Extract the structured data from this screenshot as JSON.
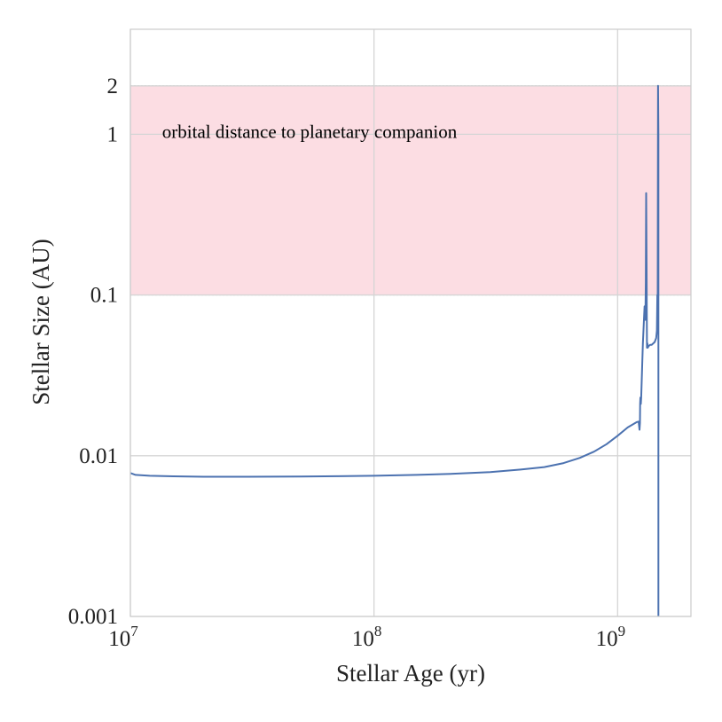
{
  "chart_data": {
    "type": "line",
    "xlabel": "Stellar Age (yr)",
    "ylabel": "Stellar Size (AU)",
    "xscale": "log",
    "yscale": "log",
    "xlim": [
      10000000,
      2000000000
    ],
    "ylim": [
      0.001,
      4.5
    ],
    "grid": true,
    "x_ticks": [
      {
        "value": 10000000,
        "base": "10",
        "exp": "7"
      },
      {
        "value": 100000000,
        "base": "10",
        "exp": "8"
      },
      {
        "value": 1000000000,
        "base": "10",
        "exp": "9"
      }
    ],
    "y_ticks": [
      {
        "value": 0.001,
        "label": "0.001"
      },
      {
        "value": 0.01,
        "label": "0.01"
      },
      {
        "value": 0.1,
        "label": "0.1"
      },
      {
        "value": 1,
        "label": "1"
      },
      {
        "value": 2,
        "label": "2"
      }
    ],
    "band": {
      "y_min": 0.1,
      "y_max": 2,
      "color": "#fcdde3",
      "edge_color": "#bbbbbb"
    },
    "annotation": {
      "text": "orbital distance to planetary companion",
      "x": 13500000,
      "y": 1
    },
    "series": [
      {
        "color": "#4c72b0",
        "x": [
          10000000,
          10500000,
          12000000,
          15000000,
          20000000,
          30000000,
          50000000,
          70000000,
          100000000,
          150000000,
          200000000,
          300000000,
          400000000,
          500000000,
          600000000,
          700000000,
          800000000,
          900000000,
          1000000000,
          1100000000,
          1200000000,
          1220000000,
          1230000000,
          1235000000,
          1237000000,
          1240000000,
          1245000000,
          1250000000,
          1270000000,
          1290000000,
          1300000000,
          1305000000,
          1310000000,
          1315000000,
          1320000000,
          1325000000,
          1330000000,
          1340000000,
          1360000000,
          1380000000,
          1400000000,
          1420000000,
          1440000000,
          1450000000,
          1455000000,
          1460000000,
          1465000000,
          1470000000,
          1470000000
        ],
        "y": [
          0.0078,
          0.0076,
          0.0075,
          0.00745,
          0.0074,
          0.0074,
          0.00742,
          0.00746,
          0.0075,
          0.0076,
          0.0077,
          0.0079,
          0.0082,
          0.0085,
          0.009,
          0.0097,
          0.0106,
          0.0118,
          0.0133,
          0.015,
          0.0162,
          0.0163,
          0.0145,
          0.016,
          0.021,
          0.023,
          0.021,
          0.023,
          0.05,
          0.085,
          0.07,
          0.12,
          0.43,
          0.14,
          0.047,
          0.05,
          0.047,
          0.048,
          0.049,
          0.049,
          0.05,
          0.051,
          0.054,
          0.06,
          0.1,
          0.09,
          2.0,
          1.0,
          0.001
        ]
      }
    ]
  }
}
